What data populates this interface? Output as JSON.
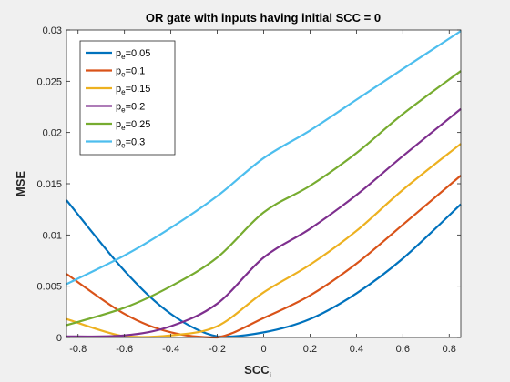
{
  "chart_data": {
    "type": "line",
    "title": "OR gate with inputs having initial SCC = 0",
    "xlabel": "SCC",
    "xlabel_subscript": "i",
    "ylabel": "MSE",
    "xlim": [
      -0.85,
      0.85
    ],
    "ylim": [
      0,
      0.03
    ],
    "xticks": [
      -0.8,
      -0.6,
      -0.4,
      -0.2,
      0,
      0.2,
      0.4,
      0.6,
      0.8
    ],
    "xtick_labels": [
      "-0.8",
      "-0.6",
      "-0.4",
      "-0.2",
      "0",
      "0.2",
      "0.4",
      "0.6",
      "0.8"
    ],
    "yticks": [
      0,
      0.005,
      0.01,
      0.015,
      0.02,
      0.025,
      0.03
    ],
    "ytick_labels": [
      "0",
      "0.005",
      "0.01",
      "0.015",
      "0.02",
      "0.025",
      "0.03"
    ],
    "legend_placement": "top-left",
    "grid": false,
    "x": [
      -0.85,
      -0.6,
      -0.4,
      -0.2,
      0,
      0.2,
      0.4,
      0.6,
      0.85
    ],
    "series": [
      {
        "label_base": "p",
        "label_sub": "e",
        "label_value": "=0.05",
        "color": "#0072BD",
        "values": [
          0.0134,
          0.0065,
          0.0023,
          0.0001,
          0.0005,
          0.0018,
          0.0043,
          0.0077,
          0.013
        ]
      },
      {
        "label_base": "p",
        "label_sub": "e",
        "label_value": "=0.1",
        "color": "#D95319",
        "values": [
          0.0062,
          0.0023,
          0.0005,
          0.0,
          0.0019,
          0.0041,
          0.0072,
          0.011,
          0.0158
        ]
      },
      {
        "label_base": "p",
        "label_sub": "e",
        "label_value": "=0.15",
        "color": "#EDB120",
        "values": [
          0.0018,
          0.0001,
          0.0002,
          0.0011,
          0.0044,
          0.0071,
          0.0104,
          0.0144,
          0.0189
        ]
      },
      {
        "label_base": "p",
        "label_sub": "e",
        "label_value": "=0.2",
        "color": "#7E2F8E",
        "values": [
          0.0001,
          0.0002,
          0.0011,
          0.0033,
          0.0078,
          0.0106,
          0.0139,
          0.0177,
          0.0223
        ]
      },
      {
        "label_base": "p",
        "label_sub": "e",
        "label_value": "=0.25",
        "color": "#77AC30",
        "values": [
          0.0012,
          0.0029,
          0.005,
          0.0078,
          0.0122,
          0.0148,
          0.018,
          0.0218,
          0.026
        ]
      },
      {
        "label_base": "p",
        "label_sub": "e",
        "label_value": "=0.3",
        "color": "#4DBEEE",
        "values": [
          0.0052,
          0.008,
          0.0107,
          0.0138,
          0.0175,
          0.0202,
          0.0232,
          0.0262,
          0.0299
        ]
      }
    ]
  }
}
